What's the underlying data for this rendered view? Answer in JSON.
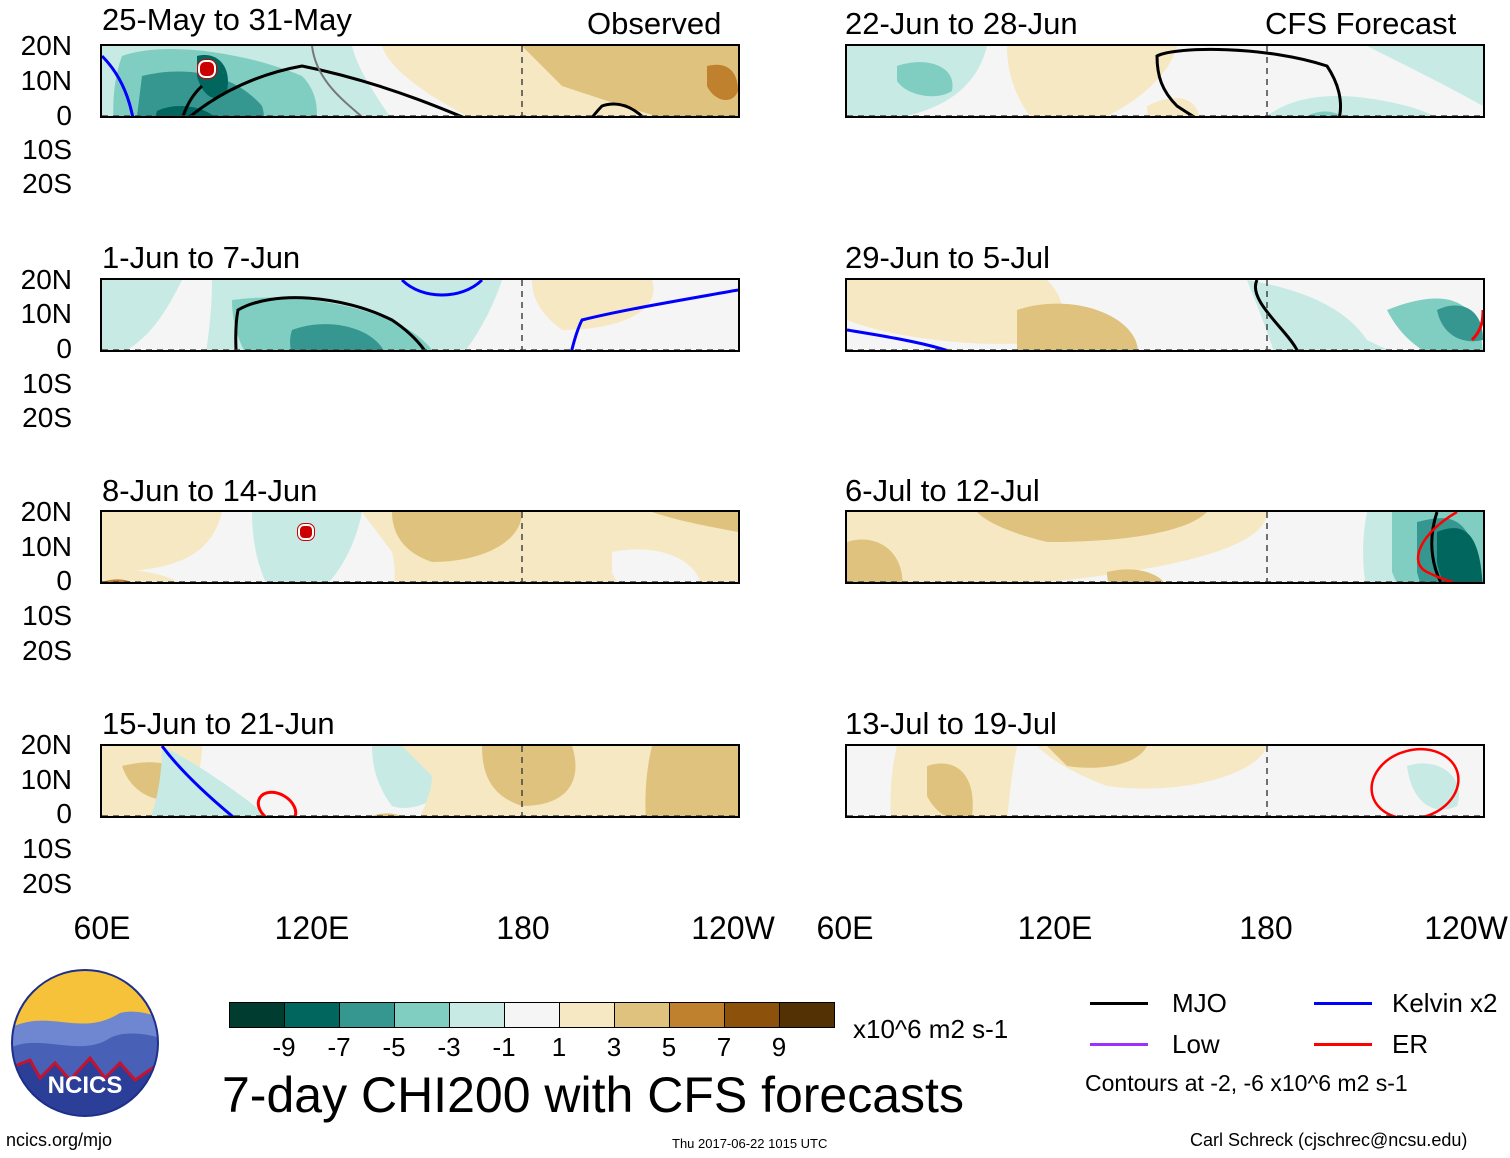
{
  "observed_label": "Observed",
  "forecast_label": "CFS Forecast",
  "lat_labels": [
    "20N",
    "10N",
    "0",
    "10S",
    "20S"
  ],
  "lon_labels": [
    "60E",
    "120E",
    "180",
    "120W"
  ],
  "panels_observed": [
    {
      "period": "25-May to 31-May"
    },
    {
      "period": "1-Jun to 7-Jun"
    },
    {
      "period": "8-Jun to 14-Jun"
    },
    {
      "period": "15-Jun to 21-Jun"
    }
  ],
  "panels_forecast": [
    {
      "period": "22-Jun to 28-Jun"
    },
    {
      "period": "29-Jun to 5-Jul"
    },
    {
      "period": "6-Jul to 12-Jul"
    },
    {
      "period": "13-Jul to 19-Jul"
    }
  ],
  "colorbar": {
    "labels": [
      "-9",
      "-7",
      "-5",
      "-3",
      "-1",
      "1",
      "3",
      "5",
      "7",
      "9"
    ],
    "colors": [
      "#003c30",
      "#01665e",
      "#35978f",
      "#80cdc1",
      "#c7eae5",
      "#f5f5f5",
      "#f6e8c3",
      "#dfc27d",
      "#bf812d",
      "#8c510a",
      "#543005"
    ],
    "units": "x10^6 m2 s-1"
  },
  "title": "7-day CHI200 with CFS forecasts",
  "legend": {
    "mjo": "MJO",
    "kelvin": "Kelvin x2",
    "low": "Low",
    "er": "ER",
    "contours": "Contours at -2, -6 x10^6 m2 s-1"
  },
  "footer": {
    "site": "ncics.org/mjo",
    "timestamp": "Thu 2017-06-22 1015 UTC",
    "author": "Carl Schreck (cjschrec@ncsu.edu)",
    "logo_text": "NCICS"
  },
  "line_colors": {
    "mjo": "#000000",
    "kelvin": "#0000ff",
    "low": "#9b30ff",
    "er": "#ff0000"
  }
}
